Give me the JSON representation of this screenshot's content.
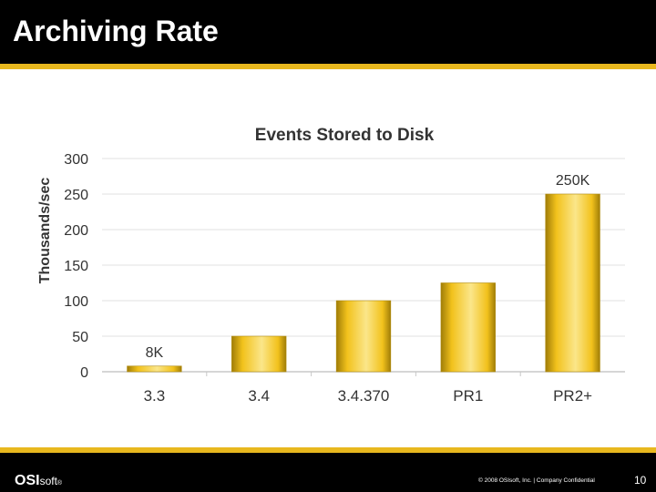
{
  "slide": {
    "title": "Archiving Rate",
    "logo_main": "OSI",
    "logo_suffix": "soft",
    "logo_mark": "®",
    "copyright": "© 2008 OSIsoft, Inc. | Company Confidential",
    "page_number": "10"
  },
  "colors": {
    "accent": "#e8b81e",
    "bar_light": "#fbe68a",
    "bar_mid": "#f2c21c",
    "bar_dark": "#a07d08",
    "background_dark": "#000000"
  },
  "chart_data": {
    "type": "bar",
    "title": "Events Stored to Disk",
    "xlabel": "",
    "ylabel": "Thousands/sec",
    "categories": [
      "3.3",
      "3.4",
      "3.4.370",
      "PR1",
      "PR2+"
    ],
    "values": [
      8,
      50,
      100,
      125,
      250
    ],
    "data_labels": [
      "8K",
      "",
      "",
      "",
      "250K"
    ],
    "ylim": [
      0,
      300
    ],
    "yticks": [
      0,
      50,
      100,
      150,
      200,
      250,
      300
    ],
    "grid": true,
    "legend": "none"
  }
}
